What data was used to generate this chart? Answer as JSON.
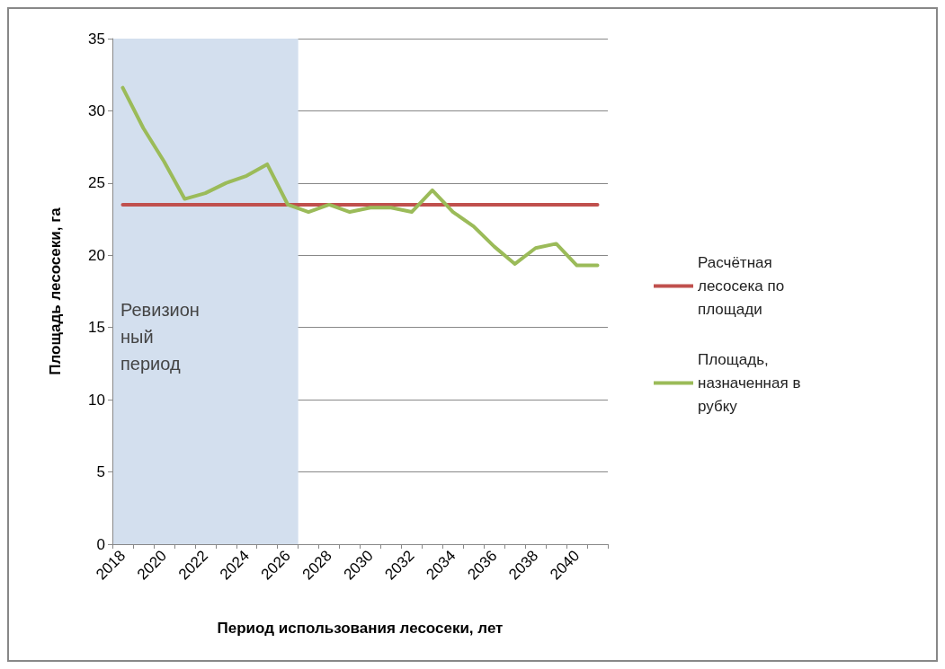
{
  "chart_data": {
    "type": "line",
    "xlabel": "Период использования лесосеки, лет",
    "ylabel": "Площадь лесосеки, га",
    "categories": [
      "2018",
      null,
      "2020",
      null,
      "2022",
      null,
      "2024",
      null,
      "2026",
      null,
      "2028",
      null,
      "2030",
      null,
      "2032",
      null,
      "2034",
      null,
      "2036",
      null,
      "2038",
      null,
      "2040",
      null
    ],
    "series": [
      {
        "name": "Расчётная лесосека по площади",
        "color": "#c0504d",
        "values": [
          23.5,
          23.5,
          23.5,
          23.5,
          23.5,
          23.5,
          23.5,
          23.5,
          23.5,
          23.5,
          23.5,
          23.5,
          23.5,
          23.5,
          23.5,
          23.5,
          23.5,
          23.5,
          23.5,
          23.5,
          23.5,
          23.5,
          23.5,
          23.5
        ]
      },
      {
        "name": "Площадь, назначенная в рубку",
        "color": "#9bbb59",
        "values": [
          31.6,
          28.8,
          26.5,
          23.9,
          24.3,
          25.0,
          25.5,
          26.3,
          23.5,
          23.0,
          23.5,
          23.0,
          23.3,
          23.3,
          23.0,
          24.5,
          23.0,
          22.0,
          20.6,
          19.4,
          20.5,
          20.8,
          19.3,
          19.3
        ]
      }
    ],
    "ylim": [
      0,
      35
    ],
    "yticks": [
      0,
      5,
      10,
      15,
      20,
      25,
      30,
      35
    ],
    "grid": "y",
    "legend": "right",
    "marker": "none",
    "line_style": "solid",
    "bands": [
      {
        "axis": "x",
        "from": "2018",
        "to": "2026",
        "label": "Ревизионный период",
        "color": "#d3dfee"
      }
    ]
  }
}
